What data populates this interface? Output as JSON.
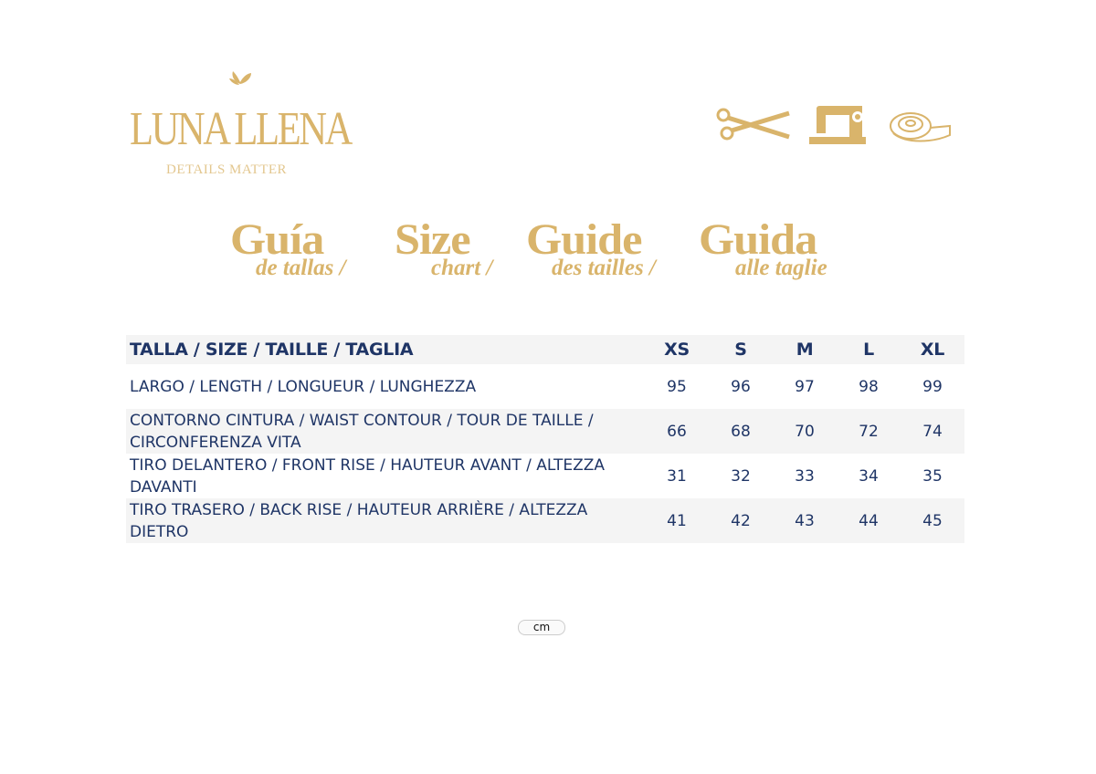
{
  "brand": {
    "name": "LUNA LLENA",
    "tagline": "DETAILS MATTER",
    "logo_icon": "palm-leaf-icon",
    "color": "#d9b46b"
  },
  "tool_icons": [
    "scissors-icon",
    "sewing-machine-icon",
    "measuring-tape-icon"
  ],
  "titles": [
    {
      "main": "Guía",
      "sub": "de tallas /"
    },
    {
      "main": "Size",
      "sub": "chart /"
    },
    {
      "main": "Guide",
      "sub": "des tailles /"
    },
    {
      "main": "Guida",
      "sub": "alle taglie"
    }
  ],
  "table": {
    "header": "TALLA / SIZE / TAILLE / TAGLIA",
    "sizes": [
      "XS",
      "S",
      "M",
      "L",
      "XL"
    ],
    "rows": [
      {
        "label": "LARGO / LENGTH / LONGUEUR / LUNGHEZZA",
        "values": [
          "95",
          "96",
          "97",
          "98",
          "99"
        ]
      },
      {
        "label": "CONTORNO CINTURA / WAIST CONTOUR / TOUR DE TAILLE / CIRCONFERENZA VITA",
        "values": [
          "66",
          "68",
          "70",
          "72",
          "74"
        ]
      },
      {
        "label": "TIRO DELANTERO / FRONT RISE / HAUTEUR AVANT / ALTEZZA DAVANTI",
        "values": [
          "31",
          "32",
          "33",
          "34",
          "35"
        ]
      },
      {
        "label": "TIRO TRASERO / BACK RISE / HAUTEUR ARRIÈRE / ALTEZZA DIETRO",
        "values": [
          "41",
          "42",
          "43",
          "44",
          "45"
        ]
      }
    ],
    "text_color": "#1f3566"
  },
  "unit": "cm"
}
